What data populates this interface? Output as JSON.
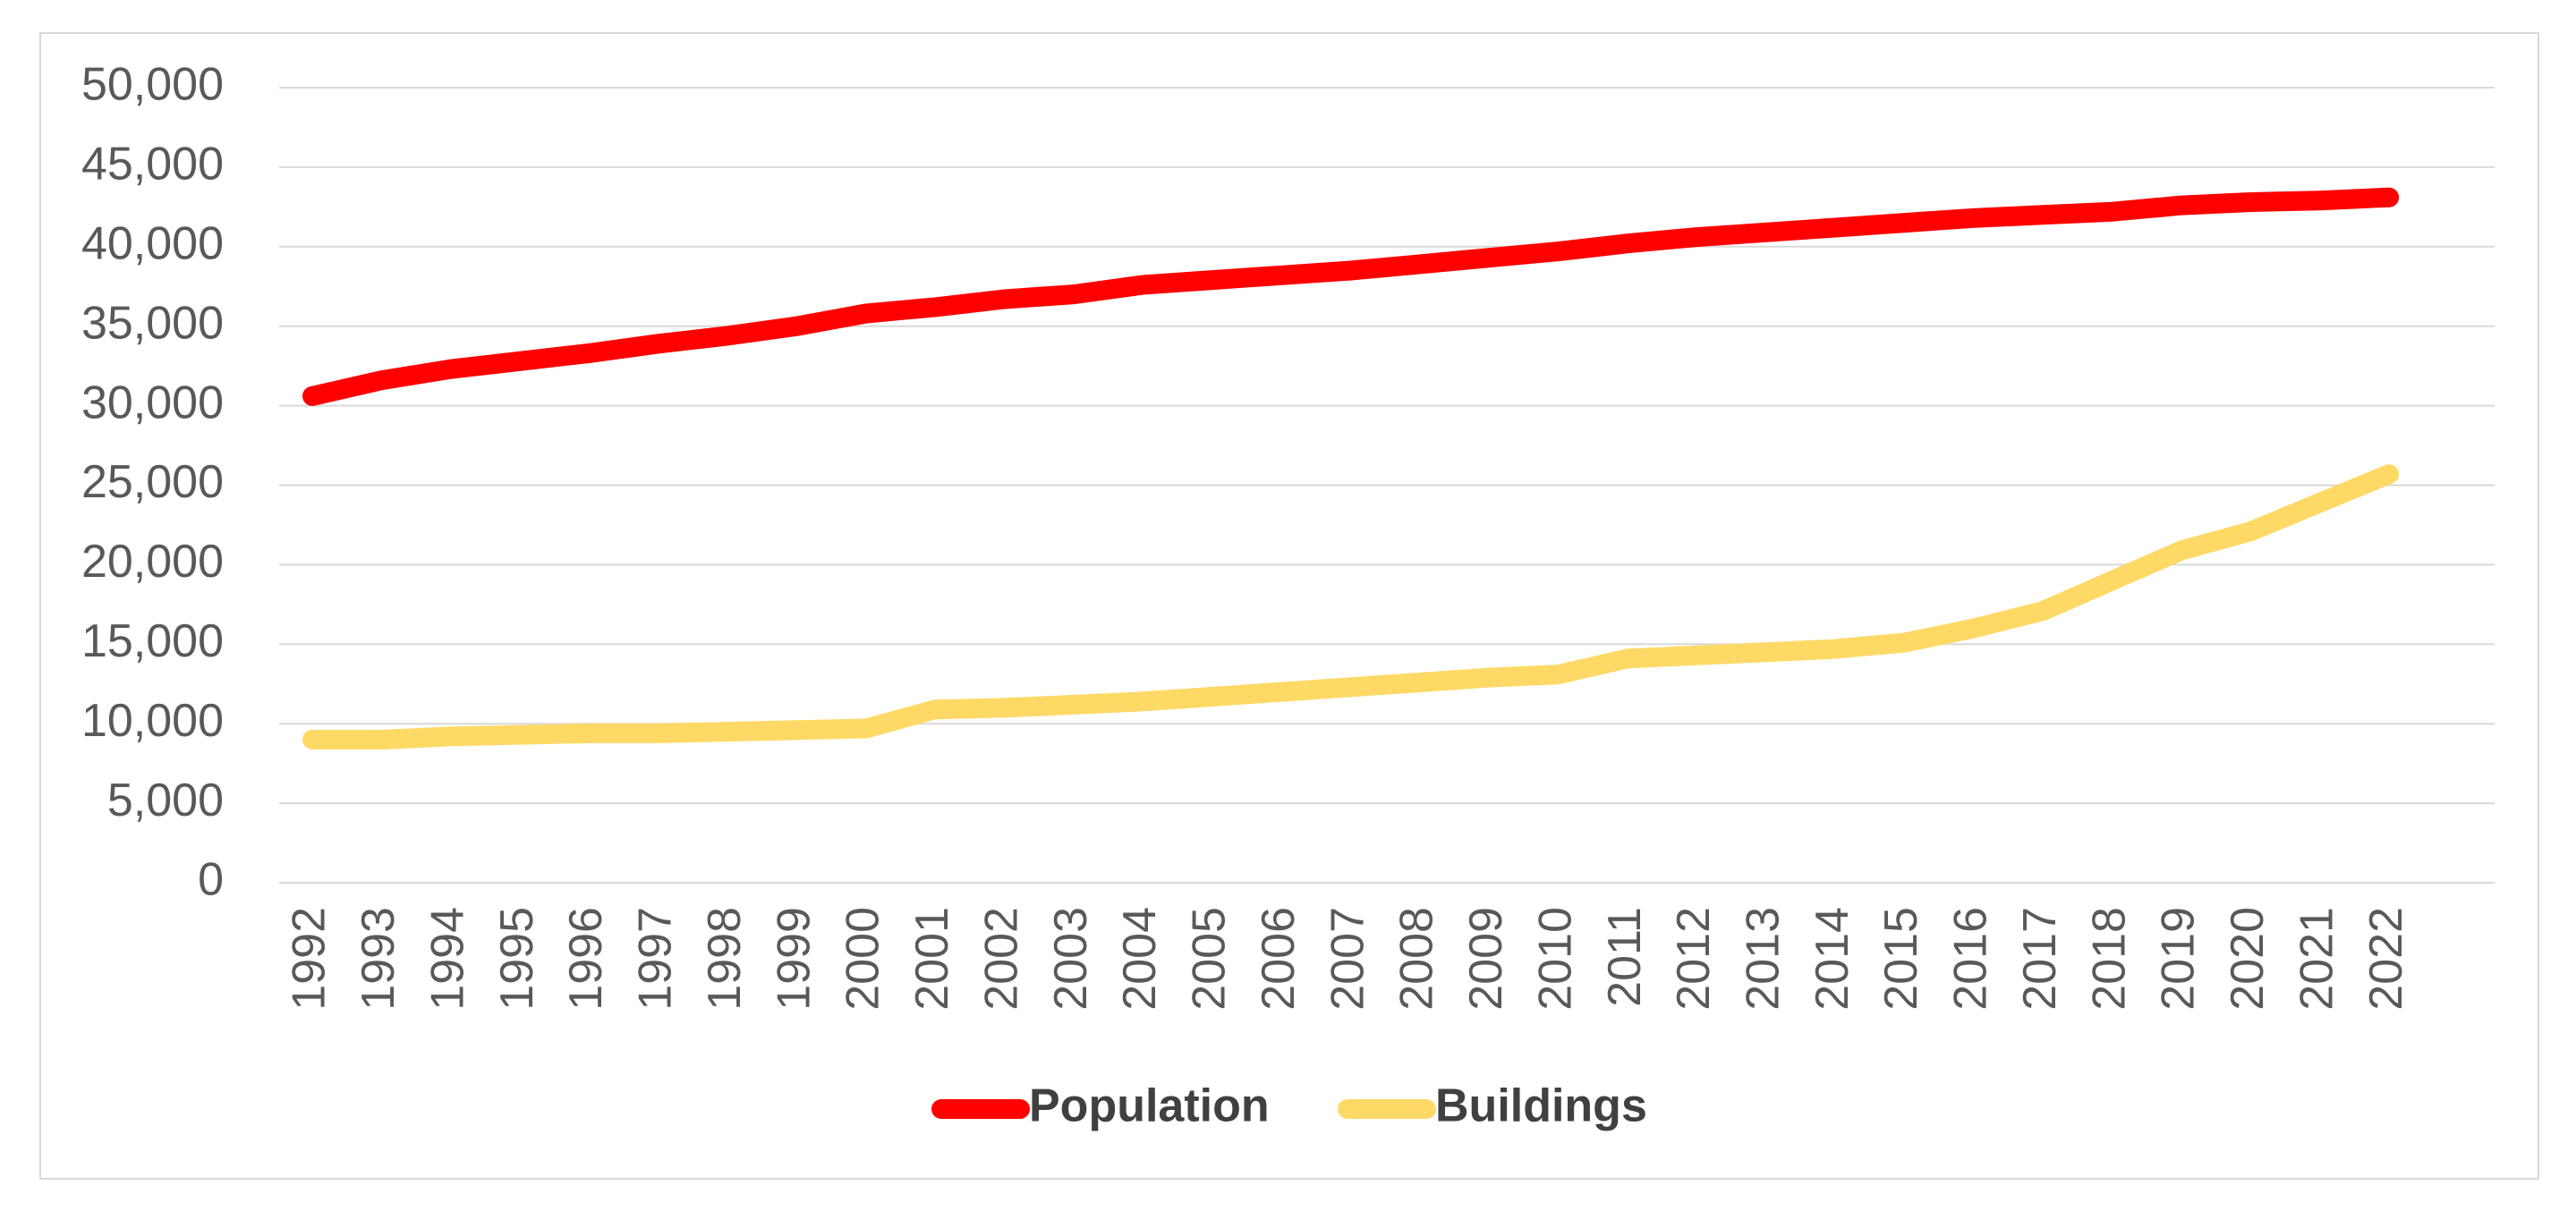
{
  "chart_data": {
    "type": "line",
    "title": "",
    "xlabel": "",
    "ylabel": "",
    "x": [
      "1992",
      "1993",
      "1994",
      "1995",
      "1996",
      "1997",
      "1998",
      "1999",
      "2000",
      "2001",
      "2002",
      "2003",
      "2004",
      "2005",
      "2006",
      "2007",
      "2008",
      "2009",
      "2010",
      "2011",
      "2012",
      "2013",
      "2014",
      "2015",
      "2016",
      "2017",
      "2018",
      "2019",
      "2020",
      "2021",
      "2022"
    ],
    "ylim": [
      0,
      50000
    ],
    "yticks": [
      0,
      5000,
      10000,
      15000,
      20000,
      25000,
      30000,
      35000,
      40000,
      45000,
      50000
    ],
    "ytick_labels": [
      "0",
      "5,000",
      "10,000",
      "15,000",
      "20,000",
      "25,000",
      "30,000",
      "35,000",
      "40,000",
      "45,000",
      "50,000"
    ],
    "grid": true,
    "legend_position": "bottom",
    "series": [
      {
        "name": "Population",
        "color": "#ff0000",
        "values": [
          30600,
          31600,
          32300,
          32800,
          33300,
          33900,
          34400,
          35000,
          35800,
          36200,
          36700,
          37000,
          37600,
          37900,
          38200,
          38500,
          38900,
          39300,
          39700,
          40200,
          40600,
          40900,
          41200,
          41500,
          41800,
          42000,
          42200,
          42600,
          42800,
          42900,
          43100
        ]
      },
      {
        "name": "Buildings",
        "color": "#ffd966",
        "values": [
          9000,
          9000,
          9200,
          9300,
          9400,
          9400,
          9500,
          9600,
          9700,
          10900,
          11000,
          11200,
          11400,
          11700,
          12000,
          12300,
          12600,
          12900,
          13100,
          14100,
          14300,
          14500,
          14700,
          15100,
          16000,
          17100,
          19000,
          20900,
          22100,
          23900,
          25700
        ]
      }
    ]
  }
}
